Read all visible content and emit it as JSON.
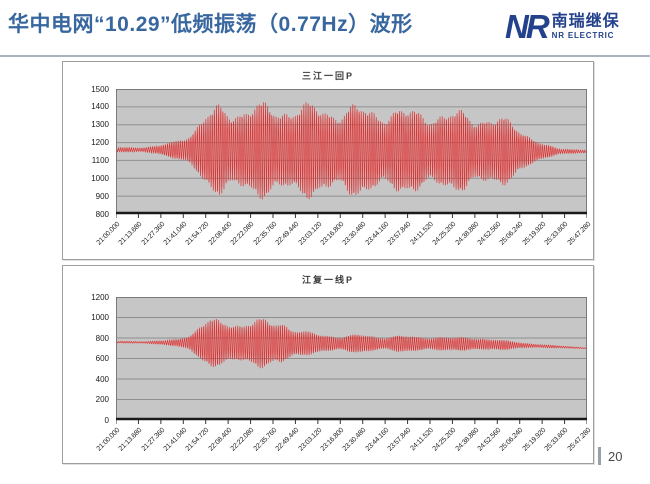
{
  "slide": {
    "title": "华中电网“10.29”低频振荡（0.77Hz）波形",
    "page_number": "20"
  },
  "logo": {
    "monogram": "NR",
    "company_cn": "南瑞继保",
    "company_en": "NR ELECTRIC"
  },
  "colors": {
    "title_blue": "#38679f",
    "logo_blue": "#24418c",
    "waveform_red": "#e03434",
    "plot_bg": "#c6c6c6",
    "grid_line": "#8f8f8f",
    "axis_black": "#1a1a1a",
    "box_border": "#9e9e9e",
    "separator": "#aab3c0"
  },
  "oscillation": {
    "frequency_hz": 0.77,
    "duration_s": 287.28
  },
  "chart_data": [
    {
      "type": "line",
      "title": "三江一回P",
      "xlabel": "",
      "ylabel": "",
      "legend": "none",
      "grid": "horizontal",
      "ylim": [
        800,
        1500
      ],
      "yticks": [
        1500,
        1400,
        1300,
        1200,
        1100,
        1000,
        900,
        800
      ],
      "xtick_labels": [
        "21:00.000",
        "21:13.680",
        "21:27.360",
        "21:41.040",
        "21:54.720",
        "22:08.400",
        "22:22.080",
        "22:35.760",
        "22:49.440",
        "23:03.120",
        "23:16.800",
        "23:30.480",
        "23:44.160",
        "23:57.840",
        "24:11.520",
        "24:25.200",
        "24:38.880",
        "24:52.560",
        "25:06.240",
        "25:19.920",
        "25:33.600",
        "25:47.280"
      ],
      "series": [
        {
          "name": "三江一回P",
          "baseline_mw": 1160,
          "envelope_t": [
            0,
            0.05,
            0.09,
            0.13,
            0.16,
            0.19,
            0.22,
            0.26,
            0.3,
            0.34,
            0.38,
            0.42,
            0.46,
            0.5,
            0.54,
            0.58,
            0.62,
            0.66,
            0.7,
            0.74,
            0.78,
            0.82,
            0.85,
            0.88,
            0.91,
            0.94,
            1.0
          ],
          "envelope_amp": [
            12,
            14,
            22,
            55,
            110,
            200,
            250,
            245,
            260,
            250,
            262,
            255,
            245,
            252,
            238,
            242,
            228,
            232,
            215,
            222,
            205,
            185,
            150,
            95,
            40,
            15,
            10
          ],
          "mid_t": [
            0,
            1
          ],
          "mid_v": [
            1160,
            1150
          ]
        }
      ]
    },
    {
      "type": "line",
      "title": "江复一线P",
      "xlabel": "",
      "ylabel": "",
      "legend": "none",
      "grid": "horizontal",
      "ylim": [
        0,
        1200
      ],
      "yticks": [
        1200,
        1000,
        800,
        600,
        400,
        200,
        0
      ],
      "xtick_labels": [
        "21:00.000",
        "21:13.680",
        "21:27.360",
        "21:41.040",
        "21:54.720",
        "22:08.400",
        "22:22.080",
        "22:35.760",
        "22:49.440",
        "23:03.120",
        "23:16.800",
        "23:30.480",
        "23:44.160",
        "23:57.840",
        "24:11.520",
        "24:25.200",
        "24:38.880",
        "24:52.560",
        "25:06.240",
        "25:19.920",
        "25:33.600",
        "25:47.280"
      ],
      "series": [
        {
          "name": "江复一线P",
          "baseline_mw": 750,
          "envelope_t": [
            0,
            0.06,
            0.1,
            0.13,
            0.155,
            0.18,
            0.2,
            0.225,
            0.25,
            0.27,
            0.3,
            0.325,
            0.35,
            0.375,
            0.4,
            0.44,
            0.48,
            0.52,
            0.56,
            0.6,
            0.64,
            0.68,
            0.72,
            0.76,
            0.8,
            0.84,
            0.88,
            0.92,
            1.0
          ],
          "envelope_amp": [
            8,
            10,
            18,
            35,
            90,
            180,
            245,
            205,
            235,
            200,
            240,
            210,
            245,
            160,
            115,
            90,
            80,
            88,
            72,
            82,
            68,
            78,
            60,
            72,
            55,
            38,
            22,
            12,
            6
          ],
          "mid_t": [
            0,
            0.15,
            0.4,
            0.75,
            0.9,
            1.0
          ],
          "mid_v": [
            760,
            752,
            748,
            742,
            722,
            700
          ]
        }
      ]
    }
  ]
}
